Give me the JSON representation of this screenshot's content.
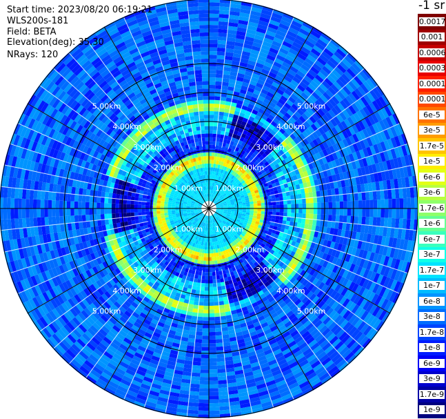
{
  "info": {
    "start_time": "Start time: 2023/08/20 06:19:21",
    "instrument": "WLS200s-181",
    "field": "Field: BETA",
    "elevation": "Elevation(deg): 35.30",
    "nrays": "NRays: 120"
  },
  "unit_label": "-1 sr",
  "chart_data": {
    "type": "heatmap",
    "projection": "polar (PPI scan)",
    "field": "BETA",
    "n_rays": 120,
    "range_rings_km": [
      1,
      2,
      3,
      4,
      5
    ],
    "ring_labels": [
      "1.00km",
      "2.00km",
      "3.00km",
      "4.00km",
      "5.00km"
    ],
    "max_range_km": 6.5,
    "feature_ring_km": [
      {
        "range_km": 1.7,
        "level": "1e-5 to 1e-4"
      },
      {
        "range_km": 3.5,
        "level": "3e-6 to 3e-5"
      }
    ],
    "colorbar": {
      "labels": [
        "0.0017",
        "0.001",
        "0.0006",
        "0.0003",
        "0.00017",
        "0.0001",
        "6e-5",
        "3e-5",
        "1.7e-5",
        "1e-5",
        "6e-6",
        "3e-6",
        "1.7e-6",
        "1e-6",
        "6e-7",
        "3e-7",
        "1.7e-7",
        "1e-7",
        "6e-8",
        "3e-8",
        "1.7e-8",
        "1e-8",
        "6e-9",
        "3e-9",
        "1.7e-9",
        "1e-9"
      ],
      "colors": [
        "#7f0000",
        "#a00000",
        "#c40000",
        "#e80000",
        "#ff1e00",
        "#ff4800",
        "#ff7200",
        "#ff9c00",
        "#ffc400",
        "#ffee00",
        "#e2ff15",
        "#b8ff3f",
        "#8eff69",
        "#64ff93",
        "#3affbd",
        "#10ffe7",
        "#00e4ff",
        "#00bcff",
        "#0094ff",
        "#006cff",
        "#0044ff",
        "#001cff",
        "#0000f6",
        "#0000ce",
        "#0000a6",
        "#00007e"
      ]
    }
  }
}
